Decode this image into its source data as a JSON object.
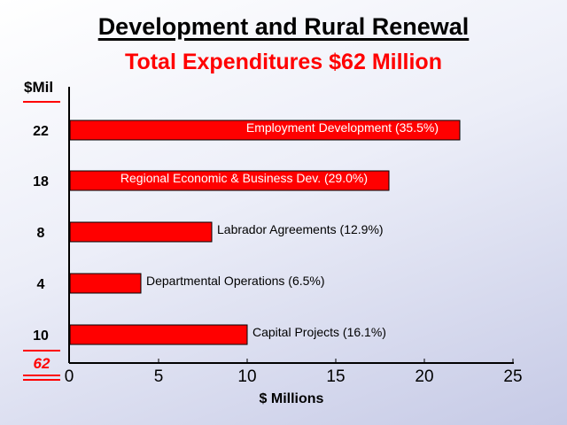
{
  "title": "Development and Rural Renewal",
  "subtitle": "Total Expenditures $62 Million",
  "left_header": "$Mil",
  "total_value": "62",
  "colors": {
    "bar": "#ff0000",
    "title": "#000000",
    "subtitle": "#ff0000",
    "total": "#ff0000"
  },
  "chart_data": {
    "type": "bar",
    "orientation": "horizontal",
    "categories": [
      "Employment Development  (35.5%)",
      "Regional Economic & Business Dev. (29.0%)",
      "Labrador Agreements  (12.9%)",
      "Departmental Operations  (6.5%)",
      "Capital  Projects   (16.1%)"
    ],
    "values": [
      22,
      18,
      8,
      4,
      10
    ],
    "value_labels": [
      "22",
      "18",
      "8",
      "4",
      "10"
    ],
    "label_inside": [
      true,
      true,
      false,
      false,
      false
    ],
    "xlabel": "$ Millions",
    "xlim": [
      0,
      25
    ],
    "xticks": [
      0,
      5,
      10,
      15,
      20,
      25
    ],
    "grid": false,
    "legend": "none"
  }
}
